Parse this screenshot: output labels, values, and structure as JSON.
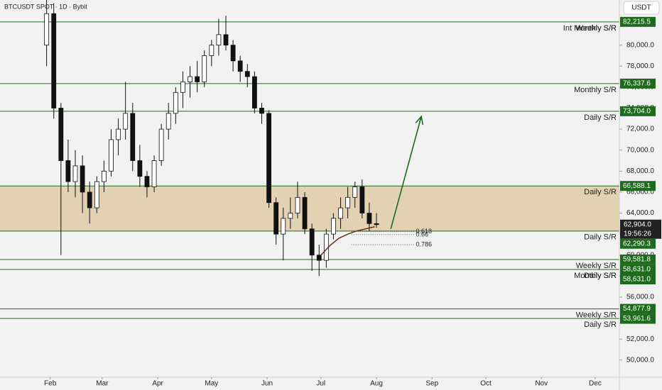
{
  "chart_data": {
    "type": "candlestick",
    "header": "BTCUSDT SPOT · 1D · Bybit",
    "currency": "USDT",
    "x": [
      30,
      34,
      38,
      42,
      46,
      50,
      54,
      58,
      62,
      66,
      70,
      74,
      78,
      82,
      86,
      90,
      94,
      98,
      102,
      106,
      110,
      114,
      118,
      122,
      126,
      130,
      134,
      138,
      142,
      146,
      150,
      154,
      158,
      162,
      166,
      170,
      174,
      178,
      182,
      186,
      190,
      194,
      198,
      202,
      206,
      210,
      214
    ],
    "open": [
      80000,
      83000,
      74000,
      69000,
      67000,
      68500,
      66000,
      64500,
      67000,
      68000,
      71000,
      72000,
      73500,
      69000,
      67500,
      66500,
      69000,
      72000,
      73500,
      75500,
      76500,
      77000,
      76500,
      79000,
      80000,
      81000,
      80000,
      78500,
      77500,
      77000,
      74000,
      73500,
      65000,
      62000,
      63500,
      64000,
      65500,
      62500,
      60000,
      59500,
      62000,
      63500,
      64500,
      65500,
      66500,
      64000,
      63000
    ],
    "high": [
      84300,
      84000,
      74500,
      71000,
      70000,
      69500,
      67000,
      67500,
      69000,
      72000,
      73000,
      76500,
      74500,
      70500,
      68000,
      69500,
      72500,
      74500,
      76000,
      77500,
      78000,
      78500,
      79500,
      80500,
      82500,
      82800,
      80500,
      79000,
      78200,
      77500,
      74500,
      73800,
      65500,
      64500,
      65500,
      67000,
      66000,
      63000,
      61000,
      62500,
      64000,
      65500,
      66500,
      67000,
      67200,
      65000,
      64000
    ],
    "low": [
      78000,
      73000,
      60000,
      66000,
      65500,
      64000,
      63000,
      64000,
      66000,
      67500,
      69500,
      71000,
      68000,
      66500,
      65500,
      66000,
      68500,
      71000,
      72500,
      74000,
      75000,
      75500,
      76000,
      78000,
      79000,
      79500,
      77500,
      76500,
      76000,
      73500,
      72500,
      64500,
      61000,
      59500,
      62500,
      63500,
      62000,
      58500,
      58000,
      58800,
      61500,
      62500,
      63500,
      64500,
      63500,
      62300,
      62600
    ],
    "close": [
      83000,
      74000,
      69000,
      67000,
      68500,
      66000,
      64500,
      67000,
      68000,
      71000,
      72000,
      73500,
      69000,
      67500,
      66500,
      69000,
      72000,
      73500,
      75500,
      76500,
      77000,
      76500,
      79000,
      80000,
      81000,
      80000,
      78500,
      77500,
      77000,
      74000,
      73500,
      65000,
      62000,
      63500,
      64000,
      65500,
      62500,
      60000,
      59500,
      62000,
      63500,
      64500,
      65500,
      66500,
      64000,
      63000,
      62904
    ],
    "xlim": [
      4,
      349.5
    ],
    "xticks": [
      {
        "value": 32,
        "label": "Feb"
      },
      {
        "value": 61,
        "label": "Mar"
      },
      {
        "value": 92,
        "label": "Apr"
      },
      {
        "value": 122,
        "label": "May"
      },
      {
        "value": 153,
        "label": "Jun"
      },
      {
        "value": 183,
        "label": "Jul"
      },
      {
        "value": 214,
        "label": "Aug"
      },
      {
        "value": 245,
        "label": "Sep"
      },
      {
        "value": 275,
        "label": "Oct"
      },
      {
        "value": 306,
        "label": "Nov"
      },
      {
        "value": 336,
        "label": "Dec"
      }
    ],
    "ylim": [
      48500,
      84300
    ],
    "yticks": [
      {
        "value": 50000,
        "label": "50,000.0"
      },
      {
        "value": 52000,
        "label": "52,000.0"
      },
      {
        "value": 54000,
        "label": "54,000.0"
      },
      {
        "value": 56000,
        "label": "56,000.0"
      },
      {
        "value": 58000,
        "label": "58,000.0"
      },
      {
        "value": 60000,
        "label": "60,000.0"
      },
      {
        "value": 62000,
        "label": "62,000.0"
      },
      {
        "value": 64000,
        "label": "64,000.0"
      },
      {
        "value": 66000,
        "label": "66,000.0"
      },
      {
        "value": 68000,
        "label": "68,000.0"
      },
      {
        "value": 70000,
        "label": "70,000.0"
      },
      {
        "value": 72000,
        "label": "72,000.0"
      },
      {
        "value": 74000,
        "label": "74,000.0"
      },
      {
        "value": 76000,
        "label": "76,000.0"
      },
      {
        "value": 78000,
        "label": "78,000.0"
      },
      {
        "value": 80000,
        "label": "80,000.0"
      }
    ],
    "last_price": {
      "value": 62904,
      "label": "62,904.0",
      "countdown": "19:56:26"
    },
    "zone": {
      "from": 62290.3,
      "to": 66588.1,
      "color": "#e0cba8"
    },
    "levels": [
      {
        "value": 82215.5,
        "label": "82,215.5",
        "names": [
          "Int Monthly S/R",
          "Weekly S/R"
        ]
      },
      {
        "value": 76337.6,
        "label": "76,337.6",
        "names": [
          "Monthly S/R"
        ]
      },
      {
        "value": 73704.0,
        "label": "73,704.0",
        "names": [
          "Daily S/R"
        ]
      },
      {
        "value": 66588.1,
        "label": "66,588.1",
        "names": [
          "Daily S/R"
        ]
      },
      {
        "value": 62290.3,
        "label": "62,290.3",
        "names": [
          "Daily S/R"
        ]
      },
      {
        "value": 59581.8,
        "label": "59,581.8",
        "names": [
          "Weekly S/R"
        ]
      },
      {
        "value": 58631.0,
        "label": "58,631.0",
        "names": [
          "Monthly S/R"
        ]
      },
      {
        "value": 58631.0,
        "label": "58,631.0",
        "names": [
          "Daily S/R"
        ]
      },
      {
        "value": 54877.9,
        "label": "54,877.9",
        "names": [
          "Weekly S/R"
        ]
      },
      {
        "value": 53961.6,
        "label": "53,961.6",
        "names": [
          "Daily S/R"
        ]
      }
    ],
    "level_color": "#1e6b1e",
    "fib": [
      {
        "ratio": 0.618,
        "price": 62250
      },
      {
        "ratio": 0.66,
        "price": 61950
      },
      {
        "ratio": 0.786,
        "price": 61000
      }
    ],
    "ma": {
      "x": [
        183,
        188,
        193,
        198,
        203,
        208,
        213
      ],
      "y": [
        60000,
        60900,
        61600,
        62000,
        62300,
        62500,
        62700
      ],
      "color": "#6b2d1e"
    },
    "arrow": {
      "x": [
        222,
        239
      ],
      "y": [
        62500,
        73200
      ],
      "color": "#1e6b1e"
    }
  }
}
